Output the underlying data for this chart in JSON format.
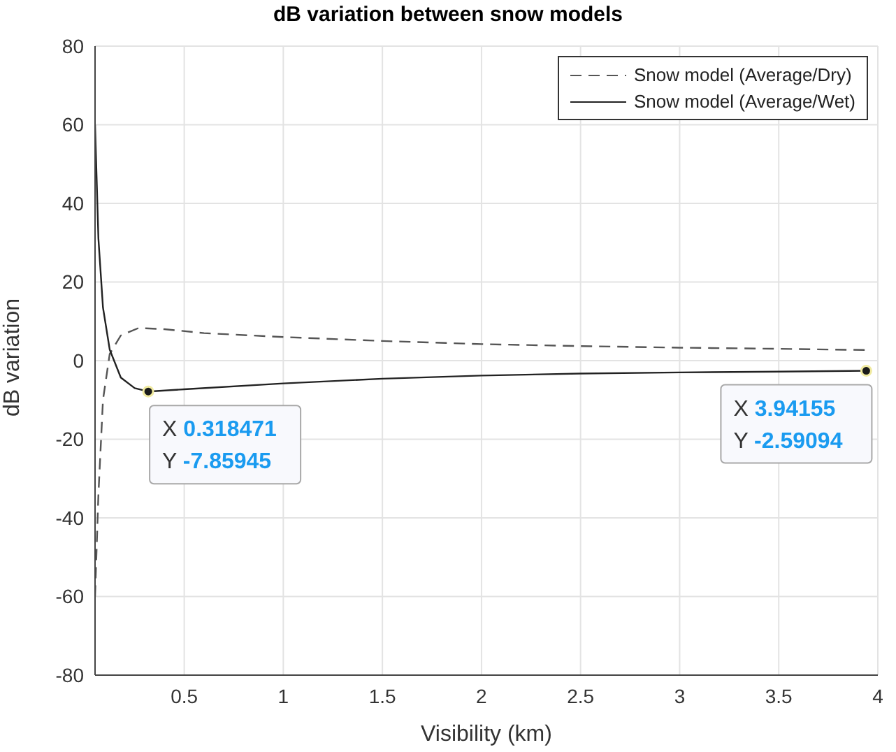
{
  "chart_data": {
    "type": "line",
    "title": "dB variation between snow models",
    "xlabel": "Visibility (km)",
    "ylabel": "dB variation",
    "series": [
      {
        "name": "Snow model (Average/Dry)",
        "color": "#555555",
        "line_style": "dashed",
        "x": [
          0.05,
          0.067,
          0.09,
          0.124,
          0.18,
          0.27,
          0.4,
          0.6,
          1,
          1.5,
          2,
          2.5,
          3,
          3.5,
          3.94155
        ],
        "values": [
          -60,
          -34,
          -10,
          1.7,
          6.4,
          8.3,
          8,
          7,
          6,
          5,
          4.2,
          3.7,
          3.3,
          3,
          2.7
        ]
      },
      {
        "name": "Snow model (Average/Wet)",
        "color": "#222222",
        "line_style": "solid",
        "x": [
          0.05,
          0.067,
          0.09,
          0.124,
          0.18,
          0.25,
          0.318471,
          0.5,
          1,
          1.5,
          2,
          2.5,
          3,
          3.5,
          3.94155
        ],
        "values": [
          60,
          31,
          13.5,
          2.8,
          -4.3,
          -7,
          -7.85945,
          -7.3,
          -5.8,
          -4.6,
          -3.8,
          -3.3,
          -3,
          -2.8,
          -2.59094
        ]
      }
    ],
    "xlim": [
      0.05,
      4
    ],
    "xticks": [
      0.5,
      1,
      1.5,
      2,
      2.5,
      3,
      3.5,
      4
    ],
    "ylim": [
      -80,
      80
    ],
    "yticks": [
      -80,
      -60,
      -40,
      -20,
      0,
      20,
      40,
      60,
      80
    ],
    "grid": true,
    "legend": "top right",
    "marker": "none",
    "annotations": [
      {
        "text": "X 0.318471\nY -7.85945",
        "x": 0.318471,
        "y": -7.85945
      },
      {
        "text": "X 3.94155\nY -2.59094",
        "x": 3.94155,
        "y": -2.59094
      }
    ]
  }
}
